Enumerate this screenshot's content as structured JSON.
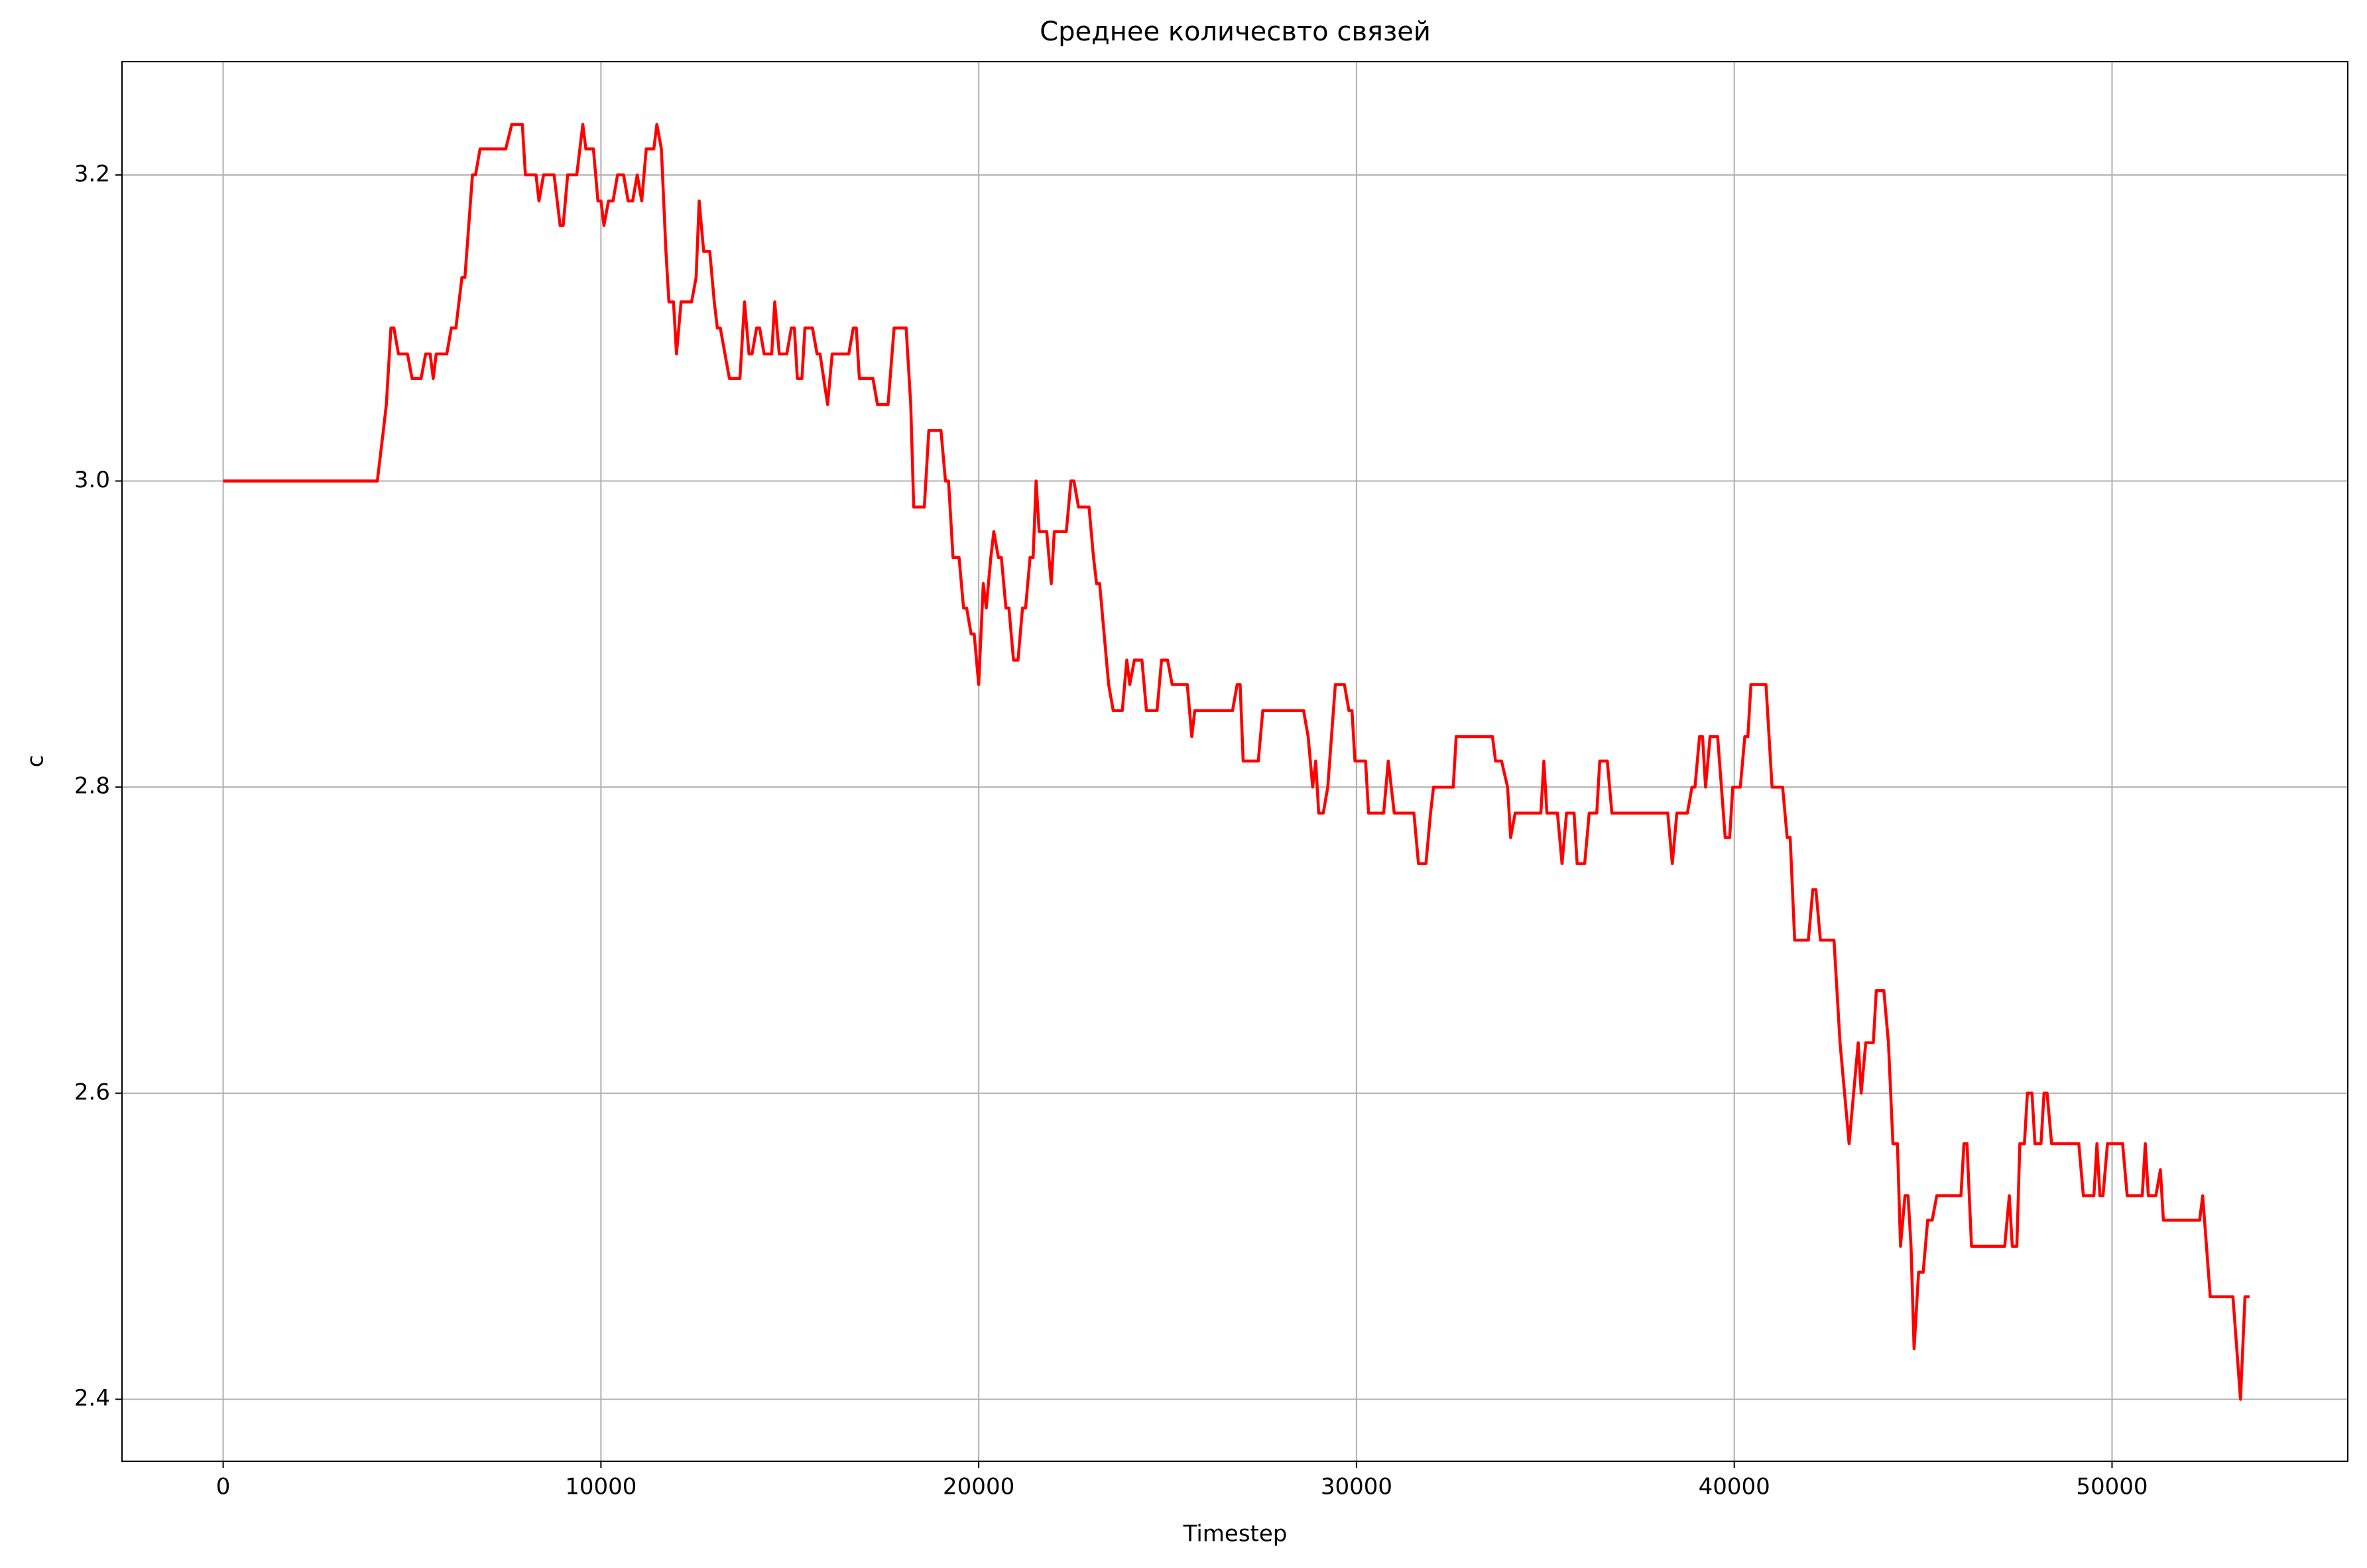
{
  "chart_data": {
    "type": "line",
    "title": "Среднее количесвто связей",
    "x_label": "Timestep",
    "y_label": "c",
    "x": [
      0,
      4080,
      4240,
      4320,
      4440,
      4520,
      4640,
      4880,
      5000,
      5240,
      5360,
      5480,
      5560,
      5640,
      5920,
      6040,
      6160,
      6320,
      6400,
      6600,
      6680,
      6800,
      7480,
      7640,
      7920,
      8000,
      8280,
      8360,
      8480,
      8760,
      8920,
      9000,
      9120,
      9360,
      9520,
      9600,
      9800,
      9920,
      10000,
      10080,
      10200,
      10320,
      10440,
      10600,
      10720,
      10840,
      10960,
      11080,
      11200,
      11400,
      11480,
      11600,
      11720,
      11800,
      11920,
      12000,
      12120,
      12400,
      12520,
      12600,
      12720,
      12880,
      13000,
      13080,
      13160,
      13400,
      13680,
      13800,
      13920,
      14000,
      14120,
      14200,
      14320,
      14520,
      14600,
      14720,
      14920,
      15040,
      15120,
      15200,
      15320,
      15400,
      15600,
      15720,
      15800,
      16000,
      16120,
      16560,
      16680,
      16760,
      16840,
      17200,
      17320,
      17600,
      17760,
      18080,
      18200,
      18280,
      18560,
      18680,
      19000,
      19120,
      19200,
      19320,
      19480,
      19600,
      19680,
      19800,
      19880,
      20000,
      20120,
      20200,
      20320,
      20400,
      20520,
      20600,
      20720,
      20800,
      20920,
      21040,
      21160,
      21240,
      21360,
      21440,
      21520,
      21600,
      21800,
      21920,
      22000,
      22320,
      22440,
      22520,
      22640,
      22920,
      23040,
      23120,
      23200,
      23440,
      23560,
      23800,
      23920,
      24000,
      24120,
      24320,
      24440,
      24720,
      24840,
      25000,
      25120,
      25520,
      25640,
      25720,
      26720,
      26840,
      26920,
      27000,
      27400,
      27520,
      28600,
      28720,
      28840,
      28920,
      29000,
      29120,
      29240,
      29440,
      29680,
      29800,
      29880,
      29960,
      30240,
      30320,
      30720,
      30840,
      31000,
      31520,
      31640,
      31840,
      31960,
      32040,
      32560,
      32640,
      33600,
      33680,
      33840,
      34000,
      34080,
      34200,
      34880,
      34960,
      35040,
      35320,
      35440,
      35560,
      35760,
      35840,
      36040,
      36160,
      36360,
      36440,
      36640,
      36760,
      38240,
      38360,
      38480,
      38760,
      38880,
      38960,
      39080,
      39160,
      39240,
      39360,
      39560,
      39760,
      39880,
      39960,
      40160,
      40280,
      40360,
      40440,
      40840,
      41000,
      41280,
      41400,
      41480,
      41600,
      41960,
      42080,
      42160,
      42280,
      42640,
      42800,
      43040,
      43160,
      43280,
      43360,
      43480,
      43680,
      43760,
      43960,
      44080,
      44200,
      44320,
      44400,
      44520,
      44600,
      44680,
      44760,
      44880,
      45000,
      45120,
      45240,
      45360,
      46000,
      46080,
      46160,
      46280,
      47160,
      47280,
      47360,
      47480,
      47560,
      47680,
      47760,
      47880,
      47960,
      48120,
      48200,
      48280,
      48400,
      49120,
      49240,
      49520,
      49600,
      49680,
      49760,
      49880,
      50280,
      50400,
      50800,
      50880,
      50960,
      51160,
      51280,
      51360,
      52320,
      52400,
      52600,
      53200,
      53400,
      53520,
      53640
    ],
    "series": [
      {
        "name": "c",
        "color": "#ff0000",
        "values": [
          3.0,
          3.0,
          3.033,
          3.05,
          3.1,
          3.1,
          3.083,
          3.083,
          3.067,
          3.067,
          3.083,
          3.083,
          3.067,
          3.083,
          3.083,
          3.1,
          3.1,
          3.133,
          3.133,
          3.2,
          3.2,
          3.217,
          3.217,
          3.233,
          3.233,
          3.2,
          3.2,
          3.183,
          3.2,
          3.2,
          3.167,
          3.167,
          3.2,
          3.2,
          3.233,
          3.217,
          3.217,
          3.183,
          3.183,
          3.167,
          3.183,
          3.183,
          3.2,
          3.2,
          3.183,
          3.183,
          3.2,
          3.183,
          3.217,
          3.217,
          3.233,
          3.217,
          3.15,
          3.117,
          3.117,
          3.083,
          3.117,
          3.117,
          3.133,
          3.183,
          3.15,
          3.15,
          3.117,
          3.1,
          3.1,
          3.067,
          3.067,
          3.117,
          3.083,
          3.083,
          3.1,
          3.1,
          3.083,
          3.083,
          3.117,
          3.083,
          3.083,
          3.1,
          3.1,
          3.067,
          3.067,
          3.1,
          3.1,
          3.083,
          3.083,
          3.05,
          3.083,
          3.083,
          3.1,
          3.1,
          3.067,
          3.067,
          3.05,
          3.05,
          3.1,
          3.1,
          3.05,
          2.983,
          2.983,
          3.033,
          3.033,
          3.0,
          3.0,
          2.95,
          2.95,
          2.917,
          2.917,
          2.9,
          2.9,
          2.867,
          2.933,
          2.917,
          2.95,
          2.967,
          2.95,
          2.95,
          2.917,
          2.917,
          2.883,
          2.883,
          2.917,
          2.917,
          2.95,
          2.95,
          3.0,
          2.967,
          2.967,
          2.933,
          2.967,
          2.967,
          3.0,
          3.0,
          2.983,
          2.983,
          2.95,
          2.933,
          2.933,
          2.867,
          2.85,
          2.85,
          2.883,
          2.867,
          2.883,
          2.883,
          2.85,
          2.85,
          2.883,
          2.883,
          2.867,
          2.867,
          2.833,
          2.85,
          2.85,
          2.867,
          2.867,
          2.817,
          2.817,
          2.85,
          2.85,
          2.833,
          2.8,
          2.817,
          2.783,
          2.783,
          2.8,
          2.867,
          2.867,
          2.85,
          2.85,
          2.817,
          2.817,
          2.783,
          2.783,
          2.817,
          2.783,
          2.783,
          2.75,
          2.75,
          2.783,
          2.8,
          2.8,
          2.833,
          2.833,
          2.817,
          2.817,
          2.8,
          2.767,
          2.783,
          2.783,
          2.817,
          2.783,
          2.783,
          2.75,
          2.783,
          2.783,
          2.75,
          2.75,
          2.783,
          2.783,
          2.817,
          2.817,
          2.783,
          2.783,
          2.75,
          2.783,
          2.783,
          2.8,
          2.8,
          2.833,
          2.833,
          2.8,
          2.833,
          2.833,
          2.767,
          2.767,
          2.8,
          2.8,
          2.833,
          2.833,
          2.867,
          2.867,
          2.8,
          2.8,
          2.767,
          2.767,
          2.7,
          2.7,
          2.733,
          2.733,
          2.7,
          2.7,
          2.633,
          2.567,
          2.6,
          2.633,
          2.6,
          2.633,
          2.633,
          2.667,
          2.667,
          2.633,
          2.567,
          2.567,
          2.5,
          2.533,
          2.533,
          2.5,
          2.433,
          2.483,
          2.483,
          2.517,
          2.517,
          2.533,
          2.533,
          2.567,
          2.567,
          2.5,
          2.5,
          2.533,
          2.5,
          2.5,
          2.567,
          2.567,
          2.6,
          2.6,
          2.567,
          2.567,
          2.6,
          2.6,
          2.567,
          2.567,
          2.533,
          2.533,
          2.567,
          2.533,
          2.533,
          2.567,
          2.567,
          2.533,
          2.533,
          2.567,
          2.533,
          2.533,
          2.55,
          2.517,
          2.517,
          2.533,
          2.467,
          2.467,
          2.4,
          2.467,
          2.467
        ]
      }
    ],
    "xlim": [
      -2678,
      56240
    ],
    "ylim": [
      2.3595,
      3.274
    ],
    "xticks": [
      0,
      10000,
      20000,
      30000,
      40000,
      50000
    ],
    "yticks": [
      2.4,
      2.6,
      2.8,
      {
        "value": 3,
        "label": "3.0"
      },
      3.2
    ],
    "grid": true
  }
}
